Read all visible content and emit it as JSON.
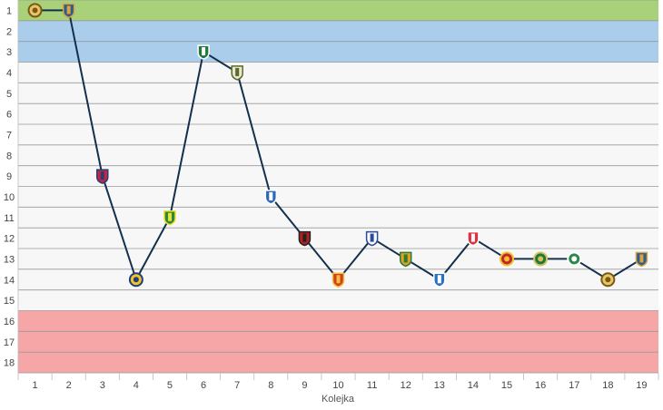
{
  "chart_data": {
    "type": "line",
    "title": "",
    "xlabel": "Kolejka",
    "ylabel": "",
    "x": [
      1,
      2,
      3,
      4,
      5,
      6,
      7,
      8,
      9,
      10,
      11,
      12,
      13,
      14,
      15,
      16,
      17,
      18,
      19
    ],
    "y_ticks": [
      1,
      2,
      3,
      4,
      5,
      6,
      7,
      8,
      9,
      10,
      11,
      12,
      13,
      14,
      15,
      16,
      17,
      18
    ],
    "ylim": [
      18,
      1
    ],
    "y_inverted": true,
    "grid": true,
    "series": [
      {
        "values": [
          1,
          1,
          9,
          14,
          11,
          3,
          4,
          10,
          12,
          14,
          12,
          13,
          14,
          12,
          13,
          13,
          13,
          14,
          13
        ],
        "color": "#13304d"
      }
    ],
    "zones": [
      {
        "from": 1,
        "to": 1,
        "color": "#a9d17a"
      },
      {
        "from": 2,
        "to": 3,
        "color": "#a9cdeb"
      },
      {
        "from": 4,
        "to": 15,
        "color": "#f7f7f7"
      },
      {
        "from": 16,
        "to": 18,
        "color": "#f6a6a6"
      }
    ],
    "marker_icons": [
      "crest-icon-gold",
      "crest-icon-navy",
      "crest-icon-red",
      "crest-icon-sun",
      "crest-icon-green-yellow",
      "crest-icon-green-white",
      "crest-icon-white-green",
      "crest-icon-blue",
      "crest-icon-red-black",
      "crest-icon-shield",
      "crest-icon-flag",
      "crest-icon-yellow-green",
      "crest-icon-blue-white",
      "crest-icon-red-white",
      "crest-icon-red-yellow",
      "crest-icon-green-circle",
      "crest-icon-green-round",
      "crest-icon-gold",
      "crest-icon-navy"
    ]
  }
}
